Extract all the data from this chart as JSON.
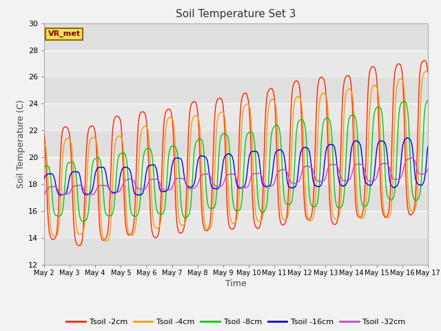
{
  "title": "Soil Temperature Set 3",
  "xlabel": "Time",
  "ylabel": "Soil Temperature (C)",
  "ylim": [
    12,
    30
  ],
  "annotation": "VR_met",
  "fig_bg": "#f2f2f2",
  "plot_bg": "#e8e8e8",
  "series_colors": {
    "Tsoil -2cm": "#ff2200",
    "Tsoil -4cm": "#ff9900",
    "Tsoil -8cm": "#00cc00",
    "Tsoil -16cm": "#0000ee",
    "Tsoil -32cm": "#cc44cc"
  },
  "tick_labels": [
    "May 2",
    "May 3",
    "May 4",
    "May 5",
    "May 6",
    "May 7",
    "May 8",
    "May 9",
    "May 10",
    "May 11",
    "May 12",
    "May 13",
    "May 14",
    "May 15",
    "May 16",
    "May 17"
  ],
  "yticks": [
    12,
    14,
    16,
    18,
    20,
    22,
    24,
    26,
    28,
    30
  ]
}
